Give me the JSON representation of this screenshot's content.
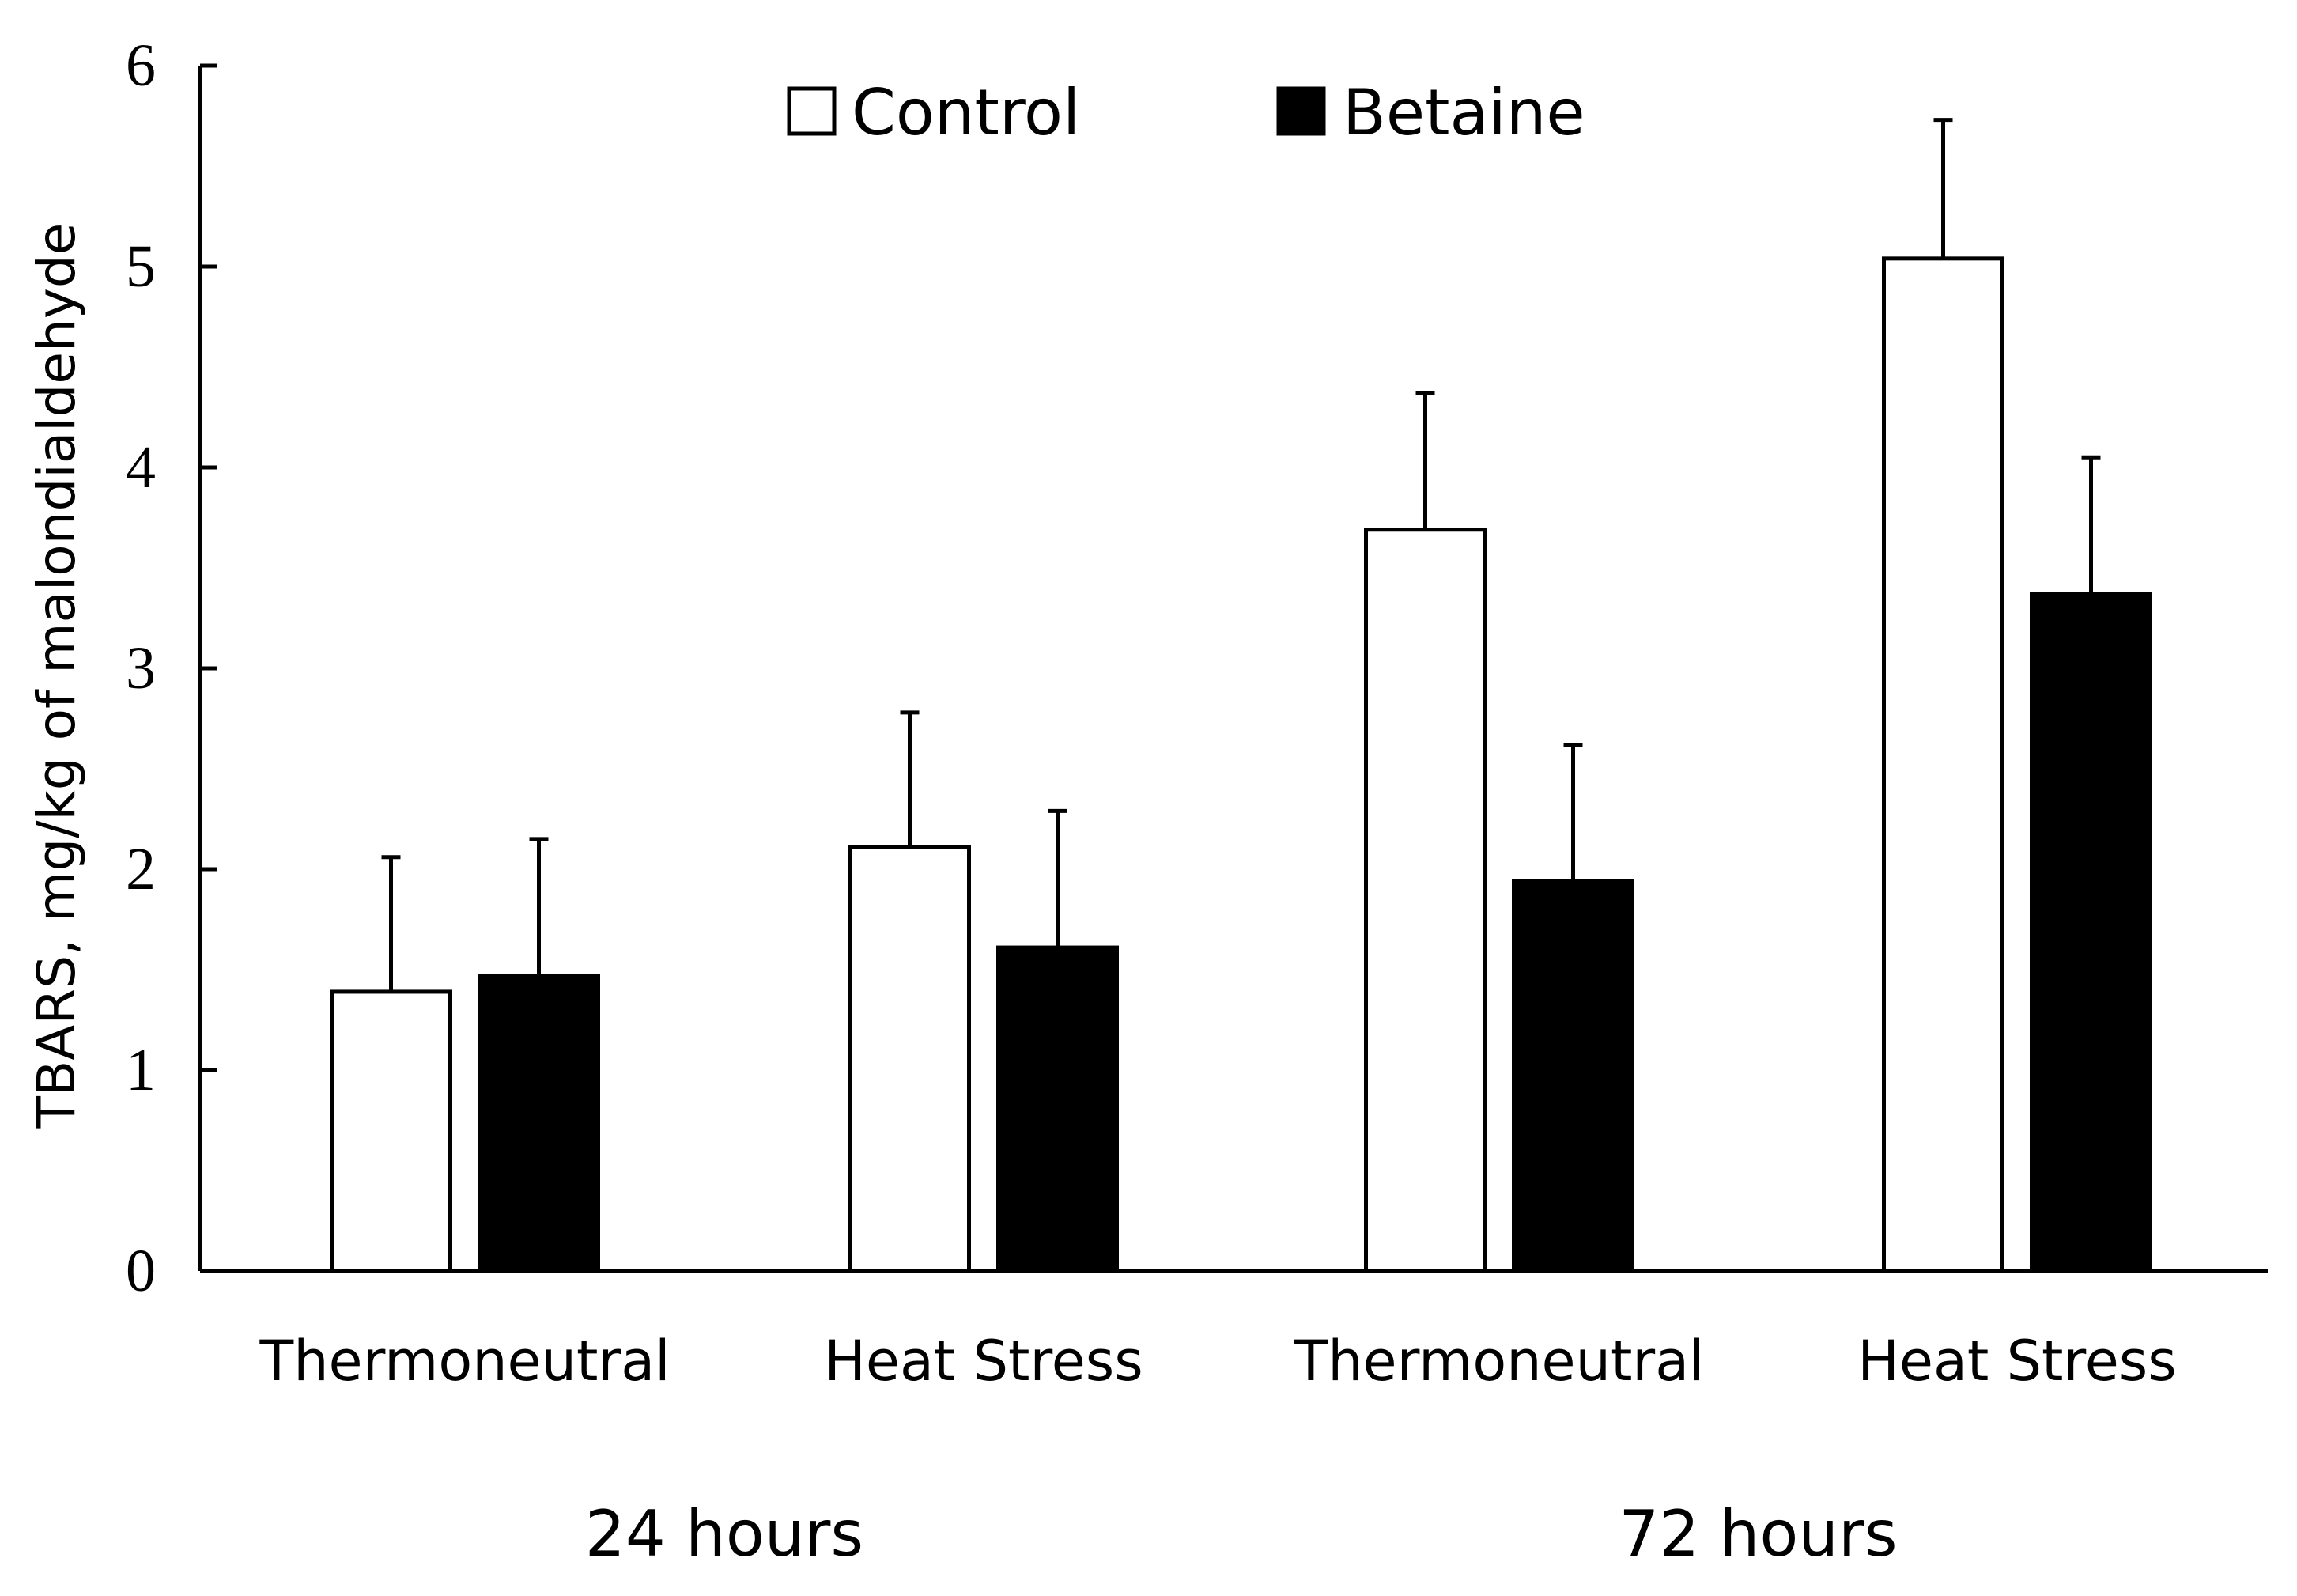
{
  "chart_data": {
    "type": "bar",
    "title": "",
    "xlabel": "",
    "ylabel": "TBARS, mg/kg of malondialdehyde",
    "ylim": [
      0,
      6
    ],
    "yticks": [
      "0",
      "1",
      "2",
      "3",
      "4",
      "5",
      "6"
    ],
    "grid": false,
    "legend_position": "top-center",
    "categories": [
      "Thermoneutral",
      "Heat Stress",
      "Thermoneutral",
      "Heat Stress"
    ],
    "groups": [
      {
        "label": "24 hours",
        "categories": [
          0,
          1
        ]
      },
      {
        "label": "72 hours",
        "categories": [
          2,
          3
        ]
      }
    ],
    "series": [
      {
        "name": "Control",
        "color": "#ffffff",
        "values": [
          1.39,
          2.11,
          3.69,
          5.04
        ],
        "errors": [
          0.67,
          0.67,
          0.68,
          0.69
        ]
      },
      {
        "name": "Betaine",
        "color": "#000000",
        "values": [
          1.47,
          1.61,
          1.94,
          3.37
        ],
        "errors": [
          0.68,
          0.68,
          0.68,
          0.68
        ]
      }
    ]
  }
}
